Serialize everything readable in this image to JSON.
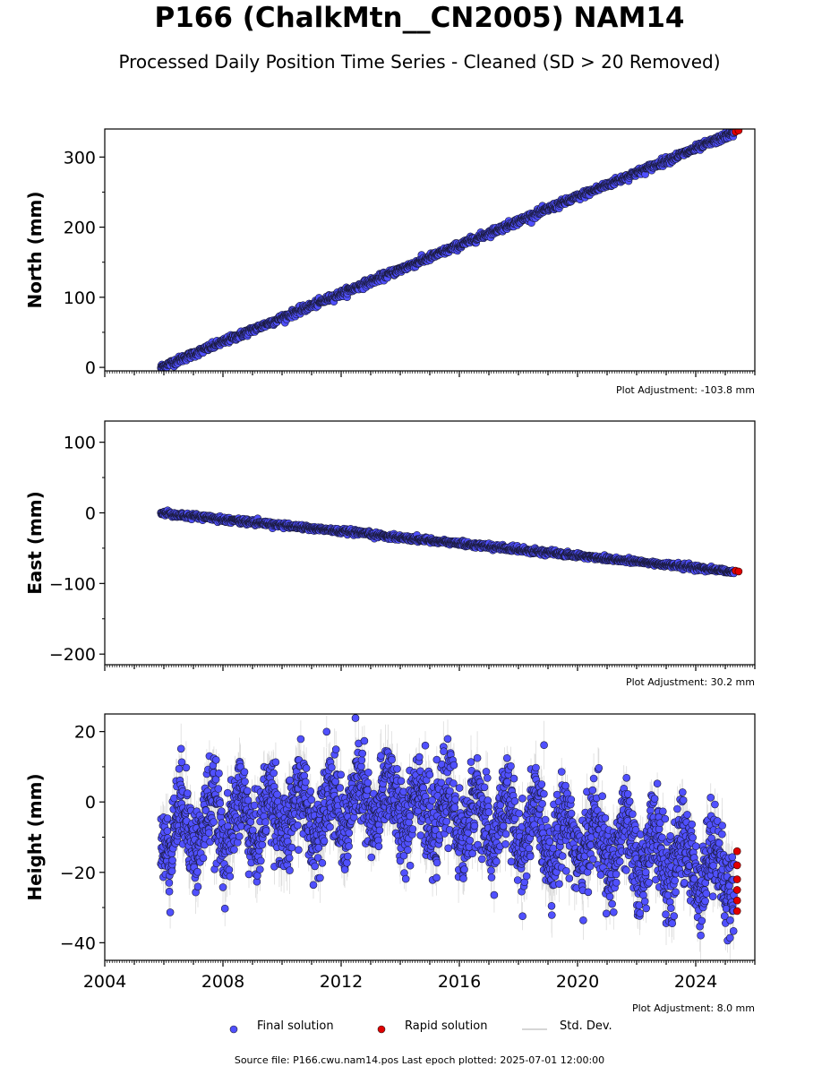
{
  "title": "P166 (ChalkMtn__CN2005) NAM14",
  "subtitle": "Processed Daily Position Time Series - Cleaned (SD > 20 Removed)",
  "chart_data": [
    {
      "type": "scatter",
      "ylabel": "North (mm)",
      "xlim": [
        2004,
        2026
      ],
      "ylim": [
        -5,
        340
      ],
      "yticks": [
        0,
        100,
        200,
        300
      ],
      "adjustment": "Plot Adjustment: -103.8 mm",
      "trend": [
        [
          2005.9,
          0
        ],
        [
          2025.5,
          338
        ]
      ],
      "noise": 2.5,
      "rapid": [
        [
          2025.35,
          336
        ],
        [
          2025.45,
          338
        ]
      ],
      "series": [
        {
          "name": "Final solution",
          "color": "#5050ff"
        },
        {
          "name": "Rapid solution",
          "color": "#e00000"
        }
      ]
    },
    {
      "type": "scatter",
      "ylabel": "East (mm)",
      "xlim": [
        2004,
        2026
      ],
      "ylim": [
        -215,
        130
      ],
      "yticks": [
        100,
        0,
        -100,
        -200
      ],
      "ytick_labels": [
        "100",
        "0",
        "−100",
        "−200"
      ],
      "adjustment": "Plot Adjustment: 30.2 mm",
      "trend": [
        [
          2005.9,
          0
        ],
        [
          2025.5,
          -84
        ]
      ],
      "noise": 1.8,
      "rapid": [
        [
          2025.35,
          -82
        ],
        [
          2025.45,
          -83
        ]
      ],
      "series": [
        {
          "name": "Final solution",
          "color": "#5050ff"
        },
        {
          "name": "Rapid solution",
          "color": "#e00000"
        }
      ]
    },
    {
      "type": "scatter",
      "ylabel": "Height (mm)",
      "xlim": [
        2004,
        2026
      ],
      "ylim": [
        -45,
        25
      ],
      "yticks": [
        20,
        0,
        -20,
        -40
      ],
      "ytick_labels": [
        "20",
        "0",
        "−20",
        "−40"
      ],
      "xticks": [
        2004,
        2008,
        2012,
        2016,
        2020,
        2024
      ],
      "adjustment": "Plot Adjustment: 8.0 mm",
      "trend": [
        [
          2005.9,
          -8
        ],
        [
          2013.7,
          0
        ],
        [
          2025.5,
          -20
        ]
      ],
      "noise": 6,
      "seasonal_amplitude": 7,
      "rapid": [
        [
          2025.4,
          -14
        ],
        [
          2025.4,
          -18
        ],
        [
          2025.4,
          -22
        ],
        [
          2025.4,
          -25
        ],
        [
          2025.4,
          -28
        ],
        [
          2025.4,
          -31
        ]
      ],
      "series": [
        {
          "name": "Final solution",
          "color": "#5050ff"
        },
        {
          "name": "Rapid solution",
          "color": "#e00000"
        },
        {
          "name": "Std. Dev.",
          "color": "#c8c8c8"
        }
      ]
    }
  ],
  "legend": {
    "final": "Final solution",
    "rapid": "Rapid solution",
    "sd": "Std. Dev."
  },
  "footer": "Source file: P166.cwu.nam14.pos  Last epoch plotted: 2025-07-01 12:00:00"
}
